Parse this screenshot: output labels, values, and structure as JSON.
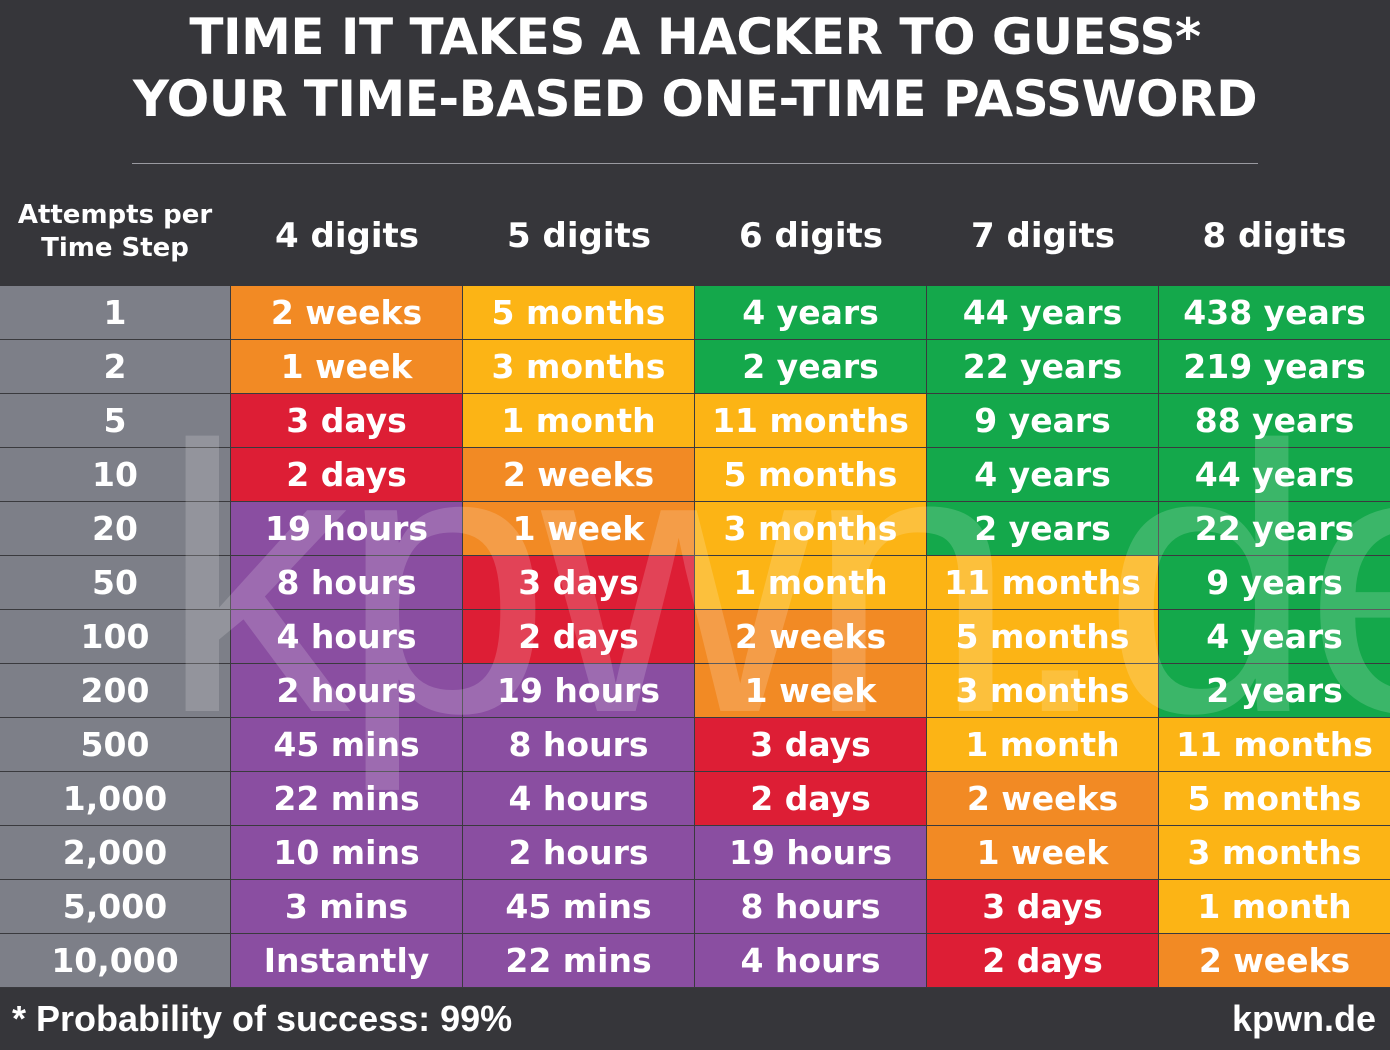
{
  "header": {
    "title_line1": "TIME IT TAKES A HACKER TO GUESS*",
    "title_line2": "YOUR TIME-BASED ONE-TIME PASSWORD"
  },
  "footer": {
    "note": "* Probability of success: 99%",
    "brand": "kpwn.de"
  },
  "watermark": "kpwn.de",
  "colors": {
    "purple": "#8a4ea1",
    "red": "#dd1e35",
    "orange": "#f28a24",
    "yellow": "#fcb415",
    "green": "#14a84b",
    "gray": "#7d7f88",
    "background": "#36363a"
  },
  "chart_data": {
    "type": "table",
    "title": "TIME IT TAKES A HACKER TO GUESS* YOUR TIME-BASED ONE-TIME PASSWORD",
    "row_header_label_line1": "Attempts per",
    "row_header_label_line2": "Time Step",
    "columns": [
      "4 digits",
      "5 digits",
      "6 digits",
      "7 digits",
      "8 digits"
    ],
    "rows": [
      {
        "attempts": "1",
        "values": [
          "2 weeks",
          "5 months",
          "4 years",
          "44 years",
          "438 years"
        ],
        "colors": [
          "orange",
          "yellow",
          "green",
          "green",
          "green"
        ]
      },
      {
        "attempts": "2",
        "values": [
          "1 week",
          "3 months",
          "2 years",
          "22 years",
          "219 years"
        ],
        "colors": [
          "orange",
          "yellow",
          "green",
          "green",
          "green"
        ]
      },
      {
        "attempts": "5",
        "values": [
          "3 days",
          "1 month",
          "11 months",
          "9 years",
          "88 years"
        ],
        "colors": [
          "red",
          "yellow",
          "yellow",
          "green",
          "green"
        ]
      },
      {
        "attempts": "10",
        "values": [
          "2 days",
          "2 weeks",
          "5 months",
          "4 years",
          "44 years"
        ],
        "colors": [
          "red",
          "orange",
          "yellow",
          "green",
          "green"
        ]
      },
      {
        "attempts": "20",
        "values": [
          "19 hours",
          "1 week",
          "3 months",
          "2 years",
          "22 years"
        ],
        "colors": [
          "purple",
          "orange",
          "yellow",
          "green",
          "green"
        ]
      },
      {
        "attempts": "50",
        "values": [
          "8 hours",
          "3 days",
          "1 month",
          "11 months",
          "9 years"
        ],
        "colors": [
          "purple",
          "red",
          "yellow",
          "yellow",
          "green"
        ]
      },
      {
        "attempts": "100",
        "values": [
          "4 hours",
          "2 days",
          "2 weeks",
          "5 months",
          "4 years"
        ],
        "colors": [
          "purple",
          "red",
          "orange",
          "yellow",
          "green"
        ]
      },
      {
        "attempts": "200",
        "values": [
          "2 hours",
          "19 hours",
          "1 week",
          "3 months",
          "2 years"
        ],
        "colors": [
          "purple",
          "purple",
          "orange",
          "yellow",
          "green"
        ]
      },
      {
        "attempts": "500",
        "values": [
          "45 mins",
          "8 hours",
          "3 days",
          "1 month",
          "11 months"
        ],
        "colors": [
          "purple",
          "purple",
          "red",
          "yellow",
          "yellow"
        ]
      },
      {
        "attempts": "1,000",
        "values": [
          "22 mins",
          "4 hours",
          "2 days",
          "2 weeks",
          "5 months"
        ],
        "colors": [
          "purple",
          "purple",
          "red",
          "orange",
          "yellow"
        ]
      },
      {
        "attempts": "2,000",
        "values": [
          "10 mins",
          "2 hours",
          "19 hours",
          "1 week",
          "3 months"
        ],
        "colors": [
          "purple",
          "purple",
          "purple",
          "orange",
          "yellow"
        ]
      },
      {
        "attempts": "5,000",
        "values": [
          "3 mins",
          "45 mins",
          "8 hours",
          "3 days",
          "1 month"
        ],
        "colors": [
          "purple",
          "purple",
          "purple",
          "red",
          "yellow"
        ]
      },
      {
        "attempts": "10,000",
        "values": [
          "Instantly",
          "22 mins",
          "4 hours",
          "2 days",
          "2 weeks"
        ],
        "colors": [
          "purple",
          "purple",
          "purple",
          "red",
          "orange"
        ]
      }
    ]
  }
}
